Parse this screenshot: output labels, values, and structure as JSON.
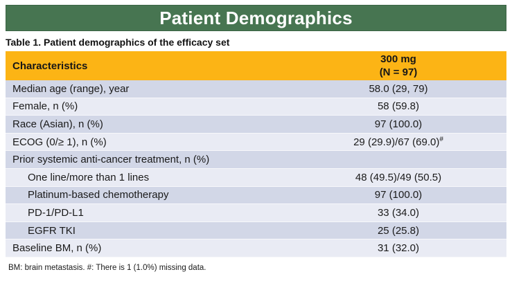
{
  "title_banner": {
    "text": "Patient Demographics"
  },
  "caption": "Table 1. Patient demographics of the efficacy set",
  "table": {
    "header": {
      "characteristics": "Characteristics",
      "group_line1": "300 mg",
      "group_line2": "(N = 97)"
    },
    "rows": [
      {
        "label": "Median age (range), year",
        "value": "58.0 (29, 79)"
      },
      {
        "label": "Female, n (%)",
        "value": "58 (59.8)"
      },
      {
        "label": "Race (Asian), n (%)",
        "value": "97 (100.0)"
      },
      {
        "label": "ECOG (0/≥ 1), n (%)",
        "value": "29 (29.9)/67 (69.0)",
        "value_sup": "#"
      },
      {
        "label": "Prior systemic anti-cancer treatment, n (%)",
        "value": ""
      },
      {
        "label": "One line/more than 1 lines",
        "value": "48 (49.5)/49 (50.5)"
      },
      {
        "label": "Platinum-based chemotherapy",
        "value": "97 (100.0)"
      },
      {
        "label": "PD-1/PD-L1",
        "value": "33 (34.0)"
      },
      {
        "label": "EGFR TKI",
        "value": "25 (25.8)"
      },
      {
        "label": "Baseline BM, n (%)",
        "value": "31 (32.0)"
      }
    ]
  },
  "footnote": "BM: brain metastasis. #: There is 1 (1.0%) missing data.",
  "colors": {
    "banner_green": "#477551",
    "header_gold": "#fcb415",
    "row_shaded": "#d2d7e7",
    "row_light": "#e9ebf4",
    "title_text": "#ffffff",
    "body_text": "#1a1a1a"
  }
}
